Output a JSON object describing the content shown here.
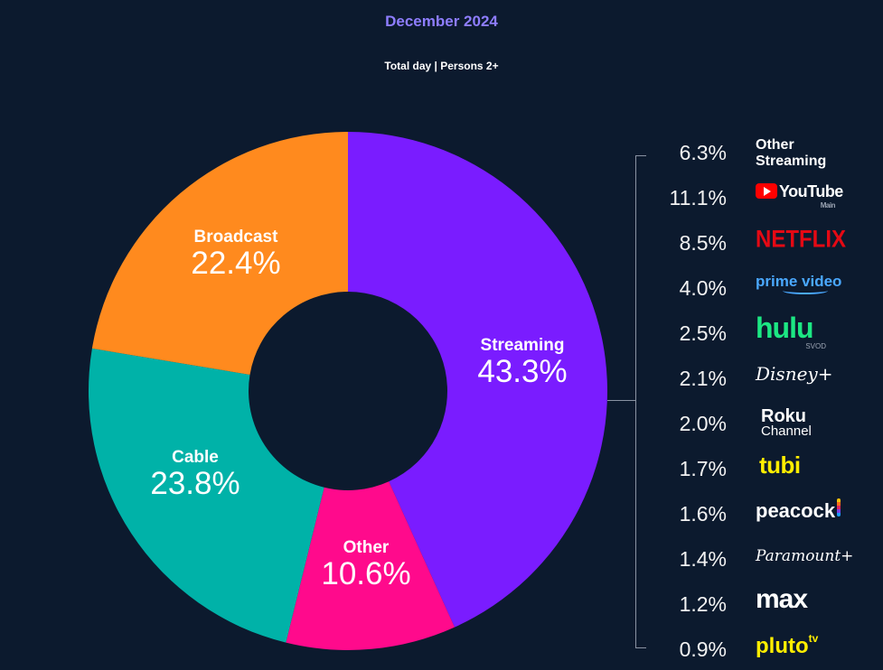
{
  "chart_data": {
    "type": "pie",
    "title": "December 2024",
    "subtitle": "Total day | Persons 2+",
    "categories": [
      "Streaming",
      "Other",
      "Cable",
      "Broadcast"
    ],
    "values": [
      43.3,
      10.6,
      23.8,
      22.4
    ],
    "value_labels": [
      "43.3%",
      "10.6%",
      "23.8%",
      "22.4%"
    ],
    "colors": [
      "#7a1cff",
      "#ff0a8c",
      "#00b2a8",
      "#ff8a1e"
    ],
    "breakdown": {
      "parent": "Streaming",
      "items": [
        {
          "name": "Other Streaming",
          "value": 6.3,
          "label": "6.3%"
        },
        {
          "name": "YouTube",
          "value": 11.1,
          "label": "11.1%"
        },
        {
          "name": "Netflix",
          "value": 8.5,
          "label": "8.5%"
        },
        {
          "name": "prime video",
          "value": 4.0,
          "label": "4.0%"
        },
        {
          "name": "hulu",
          "value": 2.5,
          "label": "2.5%"
        },
        {
          "name": "Disney+",
          "value": 2.1,
          "label": "2.1%"
        },
        {
          "name": "Roku Channel",
          "value": 2.0,
          "label": "2.0%"
        },
        {
          "name": "tubi",
          "value": 1.7,
          "label": "1.7%"
        },
        {
          "name": "peacock",
          "value": 1.6,
          "label": "1.6%"
        },
        {
          "name": "Paramount+",
          "value": 1.4,
          "label": "1.4%"
        },
        {
          "name": "max",
          "value": 1.2,
          "label": "1.2%"
        },
        {
          "name": "pluto tv",
          "value": 0.9,
          "label": "0.9%"
        }
      ]
    }
  },
  "logos": {
    "other_line1": "Other",
    "other_line2": "Streaming",
    "youtube": "YouTube",
    "youtube_sub": "Main",
    "netflix": "NETFLIX",
    "prime": "prime video",
    "hulu": "hulu",
    "hulu_sub": "SVOD",
    "disney": "Disney+",
    "roku": "Roku",
    "roku_sub": "Channel",
    "tubi": "tubi",
    "peacock": "peacock",
    "paramount": "Paramount+",
    "max": "max",
    "pluto": "pluto",
    "pluto_sup": "tv"
  }
}
